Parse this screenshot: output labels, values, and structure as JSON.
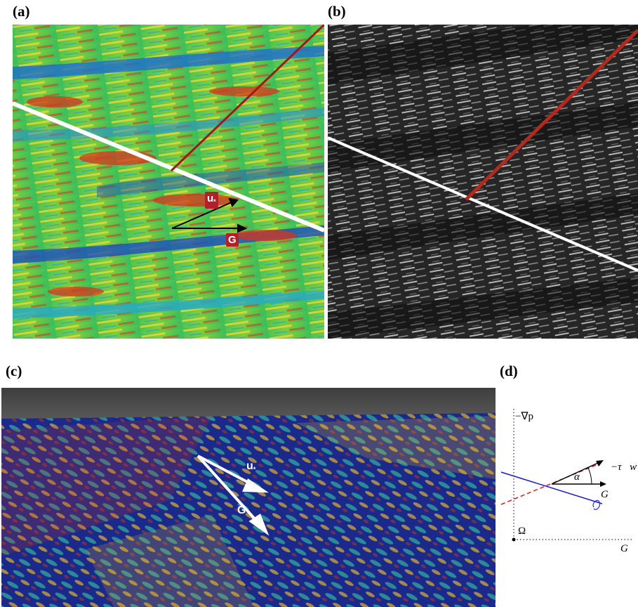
{
  "panels": {
    "a": {
      "label": "(a)",
      "vector_labels": {
        "friction_velocity": "u",
        "friction_velocity_sub": "*",
        "geostrophic": "G"
      },
      "colors": {
        "cool": "#1f4fbf",
        "mid": "#3fbf5a",
        "warm": "#e8d83a",
        "hot": "#d8341e",
        "streamline": "#ffffff",
        "red_line": "#a01818"
      }
    },
    "b": {
      "label": "(b)",
      "colors": {
        "background": "#1a1a1a",
        "streak": "#e6e6e6",
        "white_line": "#ffffff",
        "red_line": "#b22a1e"
      }
    },
    "c": {
      "label": "(c)",
      "vector_labels": {
        "friction_velocity": "u",
        "friction_velocity_sub": "*",
        "geostrophic": "G"
      },
      "colors": {
        "sky": "#4a4a4a",
        "surface": "#1b2a8a",
        "mid": "#2f9a9a",
        "warm": "#e0b030",
        "hot": "#c8341c"
      }
    },
    "d": {
      "label": "(d)",
      "labels": {
        "pressure_gradient": "−∇p",
        "wall_stress": "−τ⃗w",
        "alpha": "α",
        "geostrophic_arrow": "G⃗",
        "geostrophic_axis": "G⃗",
        "omega": "Ω"
      },
      "colors": {
        "blue_line": "#1a1ad6",
        "red_dashed": "#d81e1e",
        "axis": "#000000"
      }
    }
  }
}
